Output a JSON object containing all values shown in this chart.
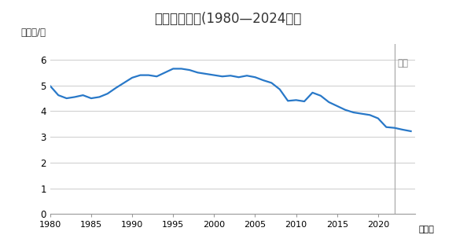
{
  "title": "日本石油消費(1980—2024年）",
  "ylabel": "百万桶/日",
  "xlabel_unit": "（年）",
  "forecast_label": "预测",
  "title_bg_color": "#c8e6f5",
  "plot_bg_color": "#ffffff",
  "line_color": "#2878c8",
  "forecast_line_color": "#aaaaaa",
  "forecast_label_color": "#888888",
  "forecast_x": 2022,
  "xlim": [
    1980,
    2024.5
  ],
  "ylim": [
    0,
    6.6
  ],
  "yticks": [
    0,
    1,
    2,
    3,
    4,
    5,
    6
  ],
  "xticks": [
    1980,
    1985,
    1990,
    1995,
    2000,
    2005,
    2010,
    2015,
    2020
  ],
  "years": [
    1980,
    1981,
    1982,
    1983,
    1984,
    1985,
    1986,
    1987,
    1988,
    1989,
    1990,
    1991,
    1992,
    1993,
    1994,
    1995,
    1996,
    1997,
    1998,
    1999,
    2000,
    2001,
    2002,
    2003,
    2004,
    2005,
    2006,
    2007,
    2008,
    2009,
    2010,
    2011,
    2012,
    2013,
    2014,
    2015,
    2016,
    2017,
    2018,
    2019,
    2020,
    2021,
    2022,
    2023,
    2024
  ],
  "values": [
    4.98,
    4.62,
    4.5,
    4.55,
    4.62,
    4.5,
    4.55,
    4.68,
    4.9,
    5.1,
    5.3,
    5.4,
    5.4,
    5.35,
    5.5,
    5.65,
    5.65,
    5.6,
    5.5,
    5.45,
    5.4,
    5.35,
    5.38,
    5.32,
    5.38,
    5.32,
    5.2,
    5.1,
    4.85,
    4.4,
    4.43,
    4.38,
    4.72,
    4.6,
    4.35,
    4.2,
    4.05,
    3.95,
    3.9,
    3.85,
    3.72,
    3.38,
    3.35,
    3.28,
    3.22
  ]
}
